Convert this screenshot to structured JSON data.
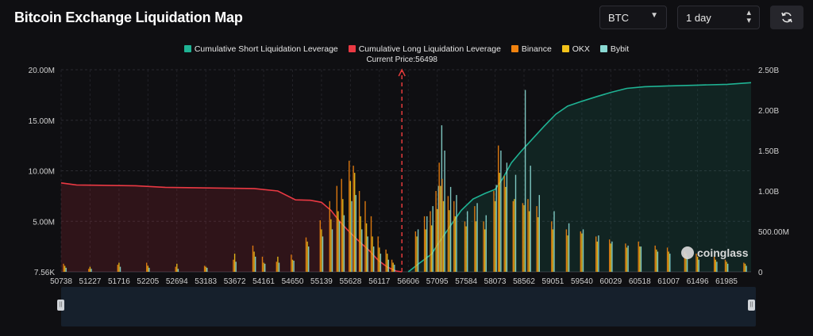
{
  "header": {
    "title": "Bitcoin Exchange Liquidation Map",
    "coin_select": "BTC",
    "range_select": "1 day",
    "refresh_icon": "refresh-icon"
  },
  "watermark": "coinglass",
  "legend": [
    {
      "label": "Cumulative Short Liquidation Leverage",
      "color": "#1fb394"
    },
    {
      "label": "Cumulative Long Liquidation Leverage",
      "color": "#ea3943"
    },
    {
      "label": "Binance",
      "color": "#f0820f"
    },
    {
      "label": "OKX",
      "color": "#f2c21a"
    },
    {
      "label": "Bybit",
      "color": "#8ad9d3"
    }
  ],
  "chart_data": {
    "type": "bar",
    "current_price_label": "Current Price:56498",
    "current_price": 56498,
    "x_range": [
      50738,
      62400
    ],
    "x_tick_labels": [
      "50738",
      "51227",
      "51716",
      "52205",
      "52694",
      "53183",
      "53672",
      "54161",
      "54650",
      "55139",
      "55628",
      "56117",
      "56606",
      "57095",
      "57584",
      "58073",
      "58562",
      "59051",
      "59540",
      "60029",
      "60518",
      "61007",
      "61496",
      "61985"
    ],
    "y_left": {
      "min": 0,
      "max": 20000000,
      "tick_labels": [
        "7.56K",
        "5.00M",
        "10.00M",
        "15.00M",
        "20.00M"
      ],
      "tick_values": [
        0,
        5000000,
        10000000,
        15000000,
        20000000
      ]
    },
    "y_right": {
      "min": 0,
      "max": 2500000000,
      "tick_labels": [
        "0",
        "500.00M",
        "1.00B",
        "1.50B",
        "2.00B",
        "2.50B"
      ],
      "tick_values": [
        0,
        500000000,
        1000000000,
        1500000000,
        2000000000,
        2500000000
      ]
    },
    "grid": true,
    "bars": {
      "x": [
        50800,
        51227,
        51716,
        52205,
        52694,
        53183,
        53672,
        54000,
        54161,
        54400,
        54650,
        54900,
        55139,
        55300,
        55420,
        55500,
        55628,
        55700,
        55800,
        55900,
        56000,
        56117,
        56250,
        56350,
        56750,
        56900,
        57000,
        57095,
        57150,
        57200,
        57300,
        57400,
        57584,
        57750,
        57900,
        58073,
        58150,
        58250,
        58400,
        58562,
        58650,
        58800,
        59051,
        59300,
        59540,
        59800,
        60029,
        60300,
        60518,
        60800,
        61007,
        61300,
        61496,
        61800,
        61985,
        62300
      ],
      "series": [
        {
          "name": "Binance",
          "values": [
            800000,
            300000,
            700000,
            900000,
            500000,
            600000,
            1200000,
            2600000,
            1500000,
            1000000,
            1700000,
            3400000,
            5100000,
            7000000,
            8500000,
            9200000,
            11000000,
            10500000,
            8000000,
            7000000,
            5500000,
            3500000,
            2200000,
            1200000,
            4000000,
            5500000,
            6000000,
            8000000,
            10800000,
            9200000,
            7500000,
            7000000,
            5000000,
            6500000,
            5000000,
            8000000,
            12500000,
            9500000,
            7000000,
            6800000,
            7200000,
            6500000,
            5000000,
            4200000,
            4000000,
            3500000,
            3200000,
            2800000,
            3000000,
            2600000,
            2400000,
            2000000,
            1800000,
            1500000,
            1200000,
            900000
          ]
        },
        {
          "name": "OKX",
          "values": [
            600000,
            500000,
            900000,
            600000,
            800000,
            500000,
            1800000,
            2000000,
            900000,
            1500000,
            1200000,
            3000000,
            4200000,
            5200000,
            6000000,
            7200000,
            9000000,
            9800000,
            5500000,
            4800000,
            3500000,
            2400000,
            1800000,
            900000,
            3500000,
            4200000,
            4600000,
            6200000,
            8500000,
            7000000,
            6100000,
            5500000,
            4500000,
            5000000,
            4200000,
            7000000,
            9800000,
            8400000,
            7200000,
            6600000,
            6000000,
            5400000,
            4200000,
            3600000,
            3800000,
            3000000,
            2800000,
            2400000,
            2500000,
            2200000,
            2000000,
            1800000,
            1500000,
            1200000,
            1000000,
            800000
          ]
        },
        {
          "name": "Bybit",
          "values": [
            400000,
            300000,
            500000,
            400000,
            300000,
            400000,
            1000000,
            1500000,
            800000,
            900000,
            1100000,
            2500000,
            3500000,
            4200000,
            5000000,
            5600000,
            7000000,
            7600000,
            4200000,
            3500000,
            2500000,
            1800000,
            1200000,
            700000,
            4200000,
            5500000,
            6500000,
            8500000,
            14500000,
            12000000,
            8400000,
            7600000,
            6000000,
            6800000,
            5600000,
            8600000,
            12000000,
            10800000,
            9600000,
            18000000,
            10500000,
            7600000,
            6000000,
            4800000,
            4200000,
            3600000,
            3000000,
            2600000,
            2500000,
            2000000,
            1800000,
            1500000,
            1200000,
            1000000,
            800000,
            600000
          ]
        }
      ]
    },
    "series": [
      {
        "name": "Cumulative Long Liquidation Leverage",
        "axis": "right",
        "x": [
          50738,
          51000,
          51500,
          52000,
          52500,
          53000,
          53500,
          54000,
          54400,
          54700,
          54950,
          55139,
          55300,
          55450,
          55628,
          55800,
          55950,
          56100,
          56250,
          56400,
          56498
        ],
        "values": [
          1100000000,
          1075000000,
          1070000000,
          1065000000,
          1045000000,
          1040000000,
          1035000000,
          1030000000,
          1000000000,
          890000000,
          885000000,
          860000000,
          760000000,
          620000000,
          480000000,
          360000000,
          260000000,
          140000000,
          60000000,
          10000000,
          0
        ]
      },
      {
        "name": "Cumulative Short Liquidation Leverage",
        "axis": "right",
        "x": [
          56606,
          56800,
          57000,
          57095,
          57300,
          57500,
          57700,
          57900,
          58073,
          58200,
          58350,
          58500,
          58700,
          58900,
          59100,
          59300,
          59540,
          59800,
          60029,
          60300,
          60600,
          61000,
          61500,
          62000,
          62400
        ],
        "values": [
          0,
          110000000,
          220000000,
          330000000,
          550000000,
          760000000,
          900000000,
          970000000,
          1020000000,
          1150000000,
          1350000000,
          1480000000,
          1640000000,
          1800000000,
          1950000000,
          2050000000,
          2110000000,
          2170000000,
          2220000000,
          2270000000,
          2290000000,
          2300000000,
          2310000000,
          2320000000,
          2340000000
        ]
      }
    ]
  }
}
